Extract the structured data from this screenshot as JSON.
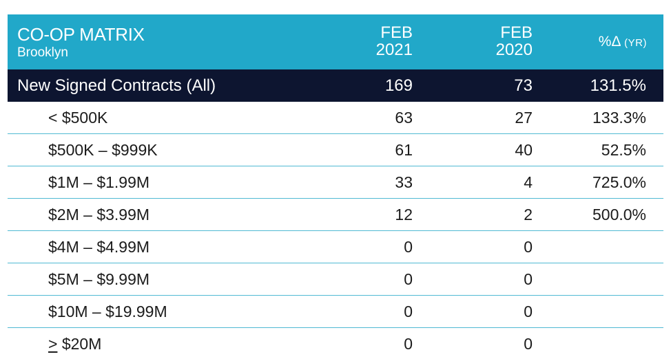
{
  "header": {
    "title": "CO-OP MATRIX",
    "subtitle": "Brooklyn",
    "col1_line1": "FEB",
    "col1_line2": "2021",
    "col2_line1": "FEB",
    "col2_line2": "2020",
    "col3_main": "%Δ",
    "col3_suffix": "(YR)"
  },
  "total": {
    "label": "New Signed Contracts (All)",
    "feb2021": "169",
    "feb2020": "73",
    "pct": "131.5%"
  },
  "rows": [
    {
      "label": "< $500K",
      "feb2021": "63",
      "feb2020": "27",
      "pct": "133.3%"
    },
    {
      "label": "$500K – $999K",
      "feb2021": "61",
      "feb2020": "40",
      "pct": "52.5%"
    },
    {
      "label": "$1M – $1.99M",
      "feb2021": "33",
      "feb2020": "4",
      "pct": "725.0%"
    },
    {
      "label": "$2M – $3.99M",
      "feb2021": "12",
      "feb2020": "2",
      "pct": "500.0%"
    },
    {
      "label": "$4M – $4.99M",
      "feb2021": "0",
      "feb2020": "0",
      "pct": ""
    },
    {
      "label": "$5M – $9.99M",
      "feb2021": "0",
      "feb2020": "0",
      "pct": ""
    },
    {
      "label": "$10M – $19.99M",
      "feb2021": "0",
      "feb2020": "0",
      "pct": ""
    },
    {
      "label_symbol": ">",
      "label": "$20M",
      "feb2021": "0",
      "feb2020": "0",
      "pct": ""
    }
  ],
  "colors": {
    "header_bg": "#21a8c9",
    "total_bg": "#0d1530",
    "divider": "#4fb9d3"
  }
}
